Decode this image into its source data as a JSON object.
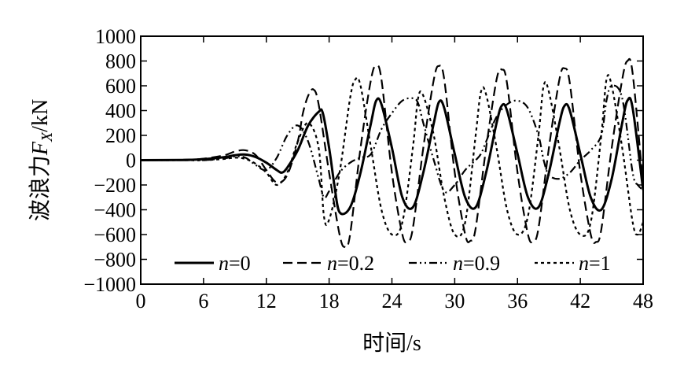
{
  "chart_data": {
    "type": "line",
    "xlabel": "时间/s",
    "ylabel": {
      "prefix": "波浪力",
      "var": "F",
      "sub": "X",
      "suffix": "/kN"
    },
    "xlim": [
      0,
      48
    ],
    "ylim": [
      -1000,
      1000
    ],
    "xticks": [
      0,
      6,
      12,
      18,
      24,
      30,
      36,
      42,
      48
    ],
    "yticks": [
      -1000,
      -800,
      -600,
      -400,
      -200,
      0,
      200,
      400,
      600,
      800,
      1000
    ],
    "grid": false,
    "legend_position": "bottom",
    "series": [
      {
        "name": "n=0",
        "var": "n",
        "value": "=0",
        "style": "solid",
        "x": [
          0,
          4,
          6,
          8,
          9,
          10,
          11,
          12,
          13,
          13.5,
          14,
          15,
          16,
          17,
          17.4,
          18,
          18.5,
          19,
          20,
          21,
          22,
          22.5,
          23,
          24,
          25,
          26,
          27,
          28,
          28.5,
          29,
          30,
          31,
          32,
          33,
          34,
          34.5,
          35,
          36,
          37,
          38,
          39,
          40,
          40.5,
          41,
          42,
          43,
          44,
          45,
          46,
          46.5,
          47,
          48
        ],
        "y": [
          0,
          2,
          8,
          25,
          40,
          45,
          25,
          -20,
          -80,
          -100,
          -60,
          80,
          280,
          390,
          380,
          100,
          -200,
          -420,
          -380,
          -100,
          300,
          480,
          450,
          100,
          -300,
          -380,
          -100,
          300,
          470,
          420,
          50,
          -300,
          -380,
          -100,
          300,
          440,
          400,
          50,
          -300,
          -380,
          -100,
          300,
          440,
          400,
          50,
          -300,
          -400,
          -150,
          300,
          480,
          420,
          -240
        ]
      },
      {
        "name": "n=0.2",
        "var": "n",
        "value": "=0.2",
        "style": "dashed",
        "x": [
          0,
          4,
          6,
          8,
          9,
          10,
          11,
          12,
          13,
          14,
          15,
          15.5,
          16,
          16.5,
          17,
          18,
          19,
          19.5,
          20,
          21,
          22,
          22.5,
          23,
          24,
          25,
          25.5,
          26,
          27,
          28,
          28.5,
          29,
          30,
          31,
          31.5,
          32,
          33,
          34,
          34.5,
          35,
          36,
          37,
          37.5,
          38,
          39,
          40,
          40.5,
          41,
          42,
          43,
          43.5,
          44,
          45,
          46,
          46.5,
          47,
          48
        ],
        "y": [
          0,
          3,
          12,
          40,
          70,
          80,
          40,
          -80,
          -180,
          -120,
          150,
          380,
          520,
          570,
          450,
          -100,
          -600,
          -700,
          -600,
          100,
          650,
          760,
          650,
          -100,
          -600,
          -650,
          -550,
          100,
          650,
          760,
          650,
          -100,
          -600,
          -650,
          -550,
          100,
          650,
          730,
          620,
          -100,
          -600,
          -650,
          -550,
          100,
          650,
          740,
          620,
          -100,
          -600,
          -660,
          -560,
          100,
          650,
          800,
          700,
          -200
        ]
      },
      {
        "name": "n=0.9",
        "var": "n",
        "value": "=0.9",
        "style": "dashdotdot",
        "x": [
          0,
          4,
          6,
          8,
          9,
          10,
          11,
          12,
          13,
          14,
          15,
          16,
          17,
          17.5,
          18,
          19,
          20,
          21,
          22,
          23,
          24,
          25,
          26,
          26.5,
          27,
          28,
          29,
          30,
          31,
          32,
          32.5,
          33,
          34,
          35,
          36,
          37,
          38,
          38.5,
          39,
          40,
          41,
          42,
          43,
          44,
          44.5,
          45,
          46,
          47,
          47.5,
          48
        ],
        "y": [
          0,
          0,
          0,
          15,
          30,
          20,
          -40,
          -80,
          20,
          200,
          280,
          150,
          -150,
          -300,
          -250,
          -100,
          -20,
          20,
          50,
          250,
          380,
          480,
          500,
          460,
          300,
          0,
          -250,
          -200,
          -80,
          0,
          50,
          150,
          350,
          450,
          480,
          420,
          200,
          0,
          -120,
          -150,
          -100,
          0,
          80,
          200,
          480,
          600,
          500,
          -100,
          -200,
          -240
        ]
      },
      {
        "name": "n=1",
        "var": "n",
        "value": "=1",
        "style": "dotted",
        "x": [
          0,
          4,
          6,
          8,
          9,
          10,
          11,
          12,
          13,
          14,
          15,
          16,
          17,
          17.5,
          18,
          19,
          20,
          20.5,
          21,
          22,
          23,
          24,
          25,
          26,
          26.5,
          27,
          28,
          29,
          30,
          31,
          32,
          32.5,
          33,
          34,
          35,
          36,
          37,
          38,
          38.5,
          39,
          40,
          41,
          42,
          43,
          44,
          44.5,
          45,
          46,
          47,
          47.5,
          48
        ],
        "y": [
          0,
          0,
          0,
          10,
          20,
          10,
          -30,
          -100,
          -200,
          -100,
          150,
          300,
          100,
          -450,
          -480,
          -100,
          500,
          650,
          600,
          100,
          -400,
          -600,
          -500,
          100,
          500,
          520,
          200,
          -300,
          -600,
          -500,
          200,
          550,
          530,
          100,
          -400,
          -600,
          -450,
          200,
          600,
          550,
          100,
          -400,
          -600,
          -500,
          200,
          650,
          600,
          100,
          -500,
          -600,
          -500
        ]
      }
    ]
  }
}
